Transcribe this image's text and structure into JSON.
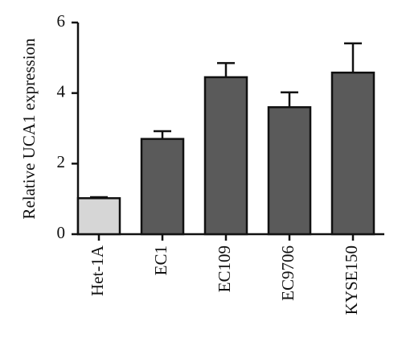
{
  "chart_data": {
    "type": "bar",
    "ylabel": "Relative UCA1 expression",
    "categories": [
      "Het-1A",
      "EC1",
      "EC109",
      "EC9706",
      "KYSE150"
    ],
    "values": [
      1.02,
      2.7,
      4.45,
      3.6,
      4.58
    ],
    "errors": [
      0.03,
      0.22,
      0.4,
      0.42,
      0.83
    ],
    "colors": [
      "#d6d6d6",
      "#5a5a5a",
      "#5a5a5a",
      "#5a5a5a",
      "#5a5a5a"
    ],
    "ylim": [
      0,
      6
    ],
    "yticks": [
      0,
      2,
      4,
      6
    ],
    "grid": false
  }
}
